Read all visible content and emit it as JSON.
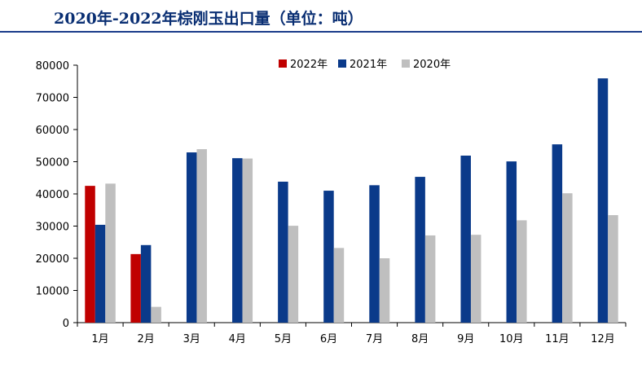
{
  "title": "2020年-2022年棕刚玉出口量（单位：吨）",
  "colors": {
    "2022年": "#c00000",
    "2021年": "#0a3a8a",
    "2020年": "#bfbfbf",
    "axis": "#000000",
    "title": "#0a2f73"
  },
  "chart_data": {
    "type": "bar",
    "title": "2020年-2022年棕刚玉出口量（单位：吨）",
    "categories": [
      "1月",
      "2月",
      "3月",
      "4月",
      "5月",
      "6月",
      "7月",
      "8月",
      "9月",
      "10月",
      "11月",
      "12月"
    ],
    "series": [
      {
        "name": "2022年",
        "values": [
          42500,
          21300,
          null,
          null,
          null,
          null,
          null,
          null,
          null,
          null,
          null,
          null
        ]
      },
      {
        "name": "2021年",
        "values": [
          30400,
          24100,
          52900,
          51100,
          43800,
          41000,
          42700,
          45300,
          51900,
          50100,
          55400,
          75900
        ]
      },
      {
        "name": "2020年",
        "values": [
          43200,
          4900,
          53900,
          51000,
          30100,
          23200,
          20000,
          27100,
          27300,
          31800,
          40200,
          33400
        ]
      }
    ],
    "ylim": [
      0,
      80000
    ],
    "yticks": [
      0,
      10000,
      20000,
      30000,
      40000,
      50000,
      60000,
      70000,
      80000
    ],
    "legend_position": "top-center",
    "grid": false
  }
}
